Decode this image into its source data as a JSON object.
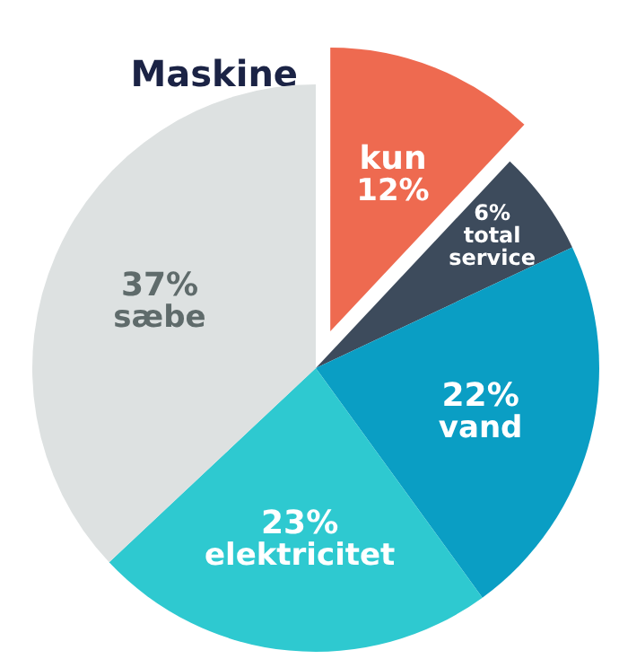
{
  "chart_data": {
    "type": "pie",
    "title": "Maskine",
    "categories": [
      "kun",
      "total service",
      "vand",
      "elektricitet",
      "sæbe"
    ],
    "values": [
      12,
      6,
      22,
      23,
      37
    ],
    "colors": [
      "#ee6a50",
      "#3d4b5c",
      "#0a9ec4",
      "#2ec9d0",
      "#dde1e1"
    ],
    "value_labels": [
      "12%",
      "6%",
      "22%",
      "23%",
      "37%"
    ]
  }
}
